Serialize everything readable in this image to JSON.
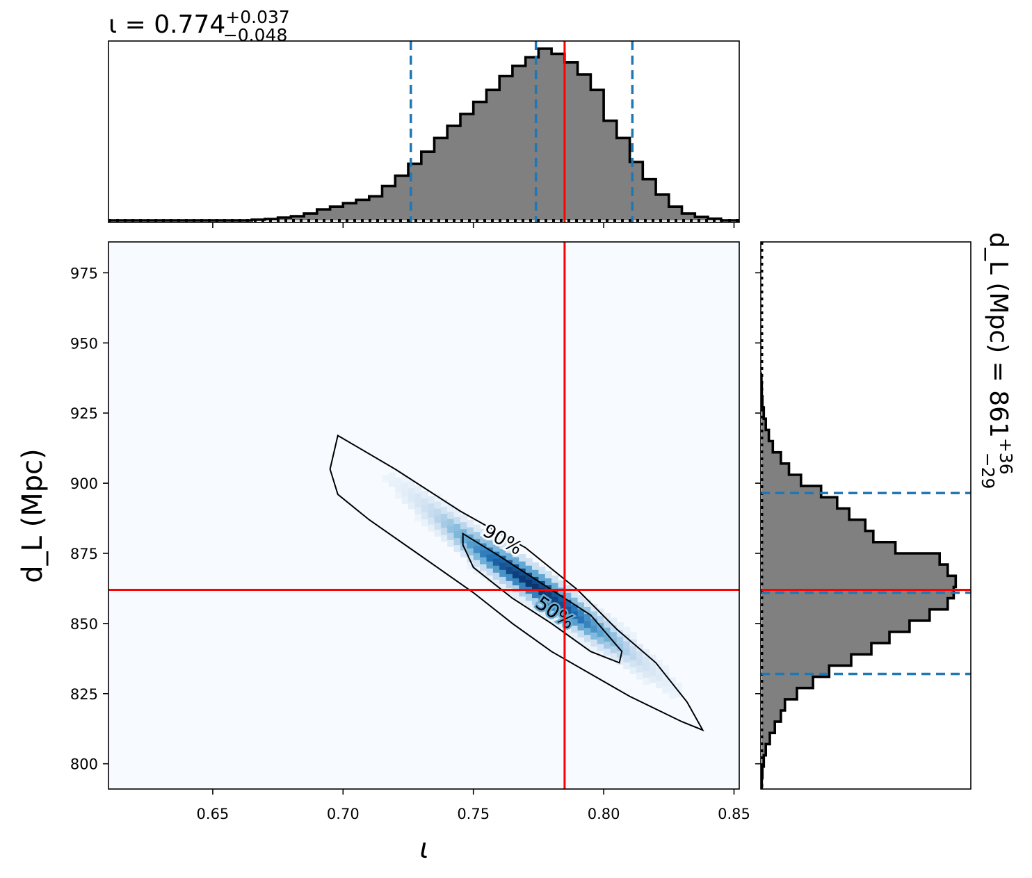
{
  "chart_data": [
    {
      "panel": "top-marginal",
      "type": "histogram",
      "title_prefix": "ι = 0.774",
      "title_sup": "+0.037",
      "title_sub": "−0.048",
      "xlim": [
        0.61,
        0.852
      ],
      "x": [
        0.61,
        0.615,
        0.62,
        0.625,
        0.63,
        0.635,
        0.64,
        0.645,
        0.65,
        0.655,
        0.66,
        0.665,
        0.67,
        0.675,
        0.68,
        0.685,
        0.69,
        0.695,
        0.7,
        0.705,
        0.71,
        0.715,
        0.72,
        0.725,
        0.73,
        0.735,
        0.74,
        0.745,
        0.75,
        0.755,
        0.76,
        0.765,
        0.77,
        0.775,
        0.78,
        0.785,
        0.79,
        0.795,
        0.8,
        0.805,
        0.81,
        0.815,
        0.82,
        0.825,
        0.83,
        0.835,
        0.84,
        0.845,
        0.85
      ],
      "values": [
        0,
        0,
        0,
        0,
        0,
        0,
        0,
        0,
        0,
        0,
        0,
        0.004,
        0.008,
        0.016,
        0.024,
        0.04,
        0.064,
        0.08,
        0.1,
        0.12,
        0.14,
        0.2,
        0.26,
        0.33,
        0.4,
        0.48,
        0.55,
        0.62,
        0.69,
        0.76,
        0.84,
        0.9,
        0.95,
        1.0,
        0.97,
        0.92,
        0.85,
        0.76,
        0.58,
        0.48,
        0.34,
        0.24,
        0.15,
        0.08,
        0.04,
        0.02,
        0.01,
        0,
        0
      ],
      "quantile_lines": [
        0.726,
        0.774,
        0.811
      ],
      "truth": 0.785
    },
    {
      "panel": "joint",
      "type": "heatmap",
      "xlabel": "ι",
      "ylabel": "d_L (Mpc)",
      "xlim": [
        0.61,
        0.852
      ],
      "ylim": [
        791,
        986
      ],
      "x_ticks": [
        "0.65",
        "0.70",
        "0.75",
        "0.80",
        "0.85"
      ],
      "y_ticks": [
        "800",
        "825",
        "850",
        "875",
        "900",
        "925",
        "950",
        "975"
      ],
      "contour_labels": [
        "90%",
        "50%"
      ],
      "contour_90": [
        [
          0.698,
          917
        ],
        [
          0.72,
          905
        ],
        [
          0.745,
          890
        ],
        [
          0.77,
          877
        ],
        [
          0.79,
          862
        ],
        [
          0.805,
          848
        ],
        [
          0.82,
          836
        ],
        [
          0.832,
          822
        ],
        [
          0.838,
          812
        ],
        [
          0.83,
          815
        ],
        [
          0.81,
          824
        ],
        [
          0.795,
          832
        ],
        [
          0.78,
          840
        ],
        [
          0.765,
          850
        ],
        [
          0.75,
          861
        ],
        [
          0.73,
          874
        ],
        [
          0.71,
          887
        ],
        [
          0.698,
          896
        ],
        [
          0.695,
          905
        ],
        [
          0.698,
          917
        ]
      ],
      "contour_50": [
        [
          0.746,
          882
        ],
        [
          0.76,
          874
        ],
        [
          0.78,
          862
        ],
        [
          0.795,
          853
        ],
        [
          0.807,
          840
        ],
        [
          0.806,
          836
        ],
        [
          0.795,
          840
        ],
        [
          0.78,
          850
        ],
        [
          0.765,
          859
        ],
        [
          0.75,
          870
        ],
        [
          0.746,
          878
        ],
        [
          0.746,
          882
        ]
      ],
      "ridge": [
        [
          0.69,
          920
        ],
        [
          0.72,
          900
        ],
        [
          0.75,
          878
        ],
        [
          0.77,
          866
        ],
        [
          0.78,
          860
        ],
        [
          0.79,
          853
        ],
        [
          0.81,
          840
        ],
        [
          0.83,
          825
        ],
        [
          0.845,
          808
        ]
      ],
      "truth_x": 0.785,
      "truth_y": 862
    },
    {
      "panel": "right-marginal",
      "type": "histogram",
      "orientation": "horizontal",
      "title_prefix": "d_L (Mpc) = 861",
      "title_sup": "+36",
      "title_sub": "−29",
      "ylim": [
        791,
        986
      ],
      "y": [
        791,
        795,
        799,
        803,
        807,
        811,
        815,
        819,
        823,
        827,
        831,
        835,
        839,
        843,
        847,
        851,
        855,
        859,
        863,
        867,
        871,
        875,
        879,
        883,
        887,
        891,
        895,
        899,
        903,
        907,
        911,
        915,
        919,
        923,
        927,
        931,
        935
      ],
      "values": [
        0.005,
        0.008,
        0.015,
        0.025,
        0.045,
        0.07,
        0.1,
        0.12,
        0.18,
        0.26,
        0.34,
        0.45,
        0.55,
        0.64,
        0.74,
        0.84,
        0.93,
        0.96,
        0.97,
        0.93,
        0.89,
        0.67,
        0.56,
        0.52,
        0.44,
        0.38,
        0.3,
        0.2,
        0.14,
        0.1,
        0.06,
        0.04,
        0.025,
        0.015,
        0.008,
        0.005,
        0.003
      ],
      "quantile_lines": [
        832,
        861,
        896.5
      ],
      "truth": 862
    }
  ],
  "colors": {
    "hist_fill": "#808080",
    "quantile": "#1f77b4",
    "truth": "#ff0000",
    "cmap": "Blues"
  }
}
